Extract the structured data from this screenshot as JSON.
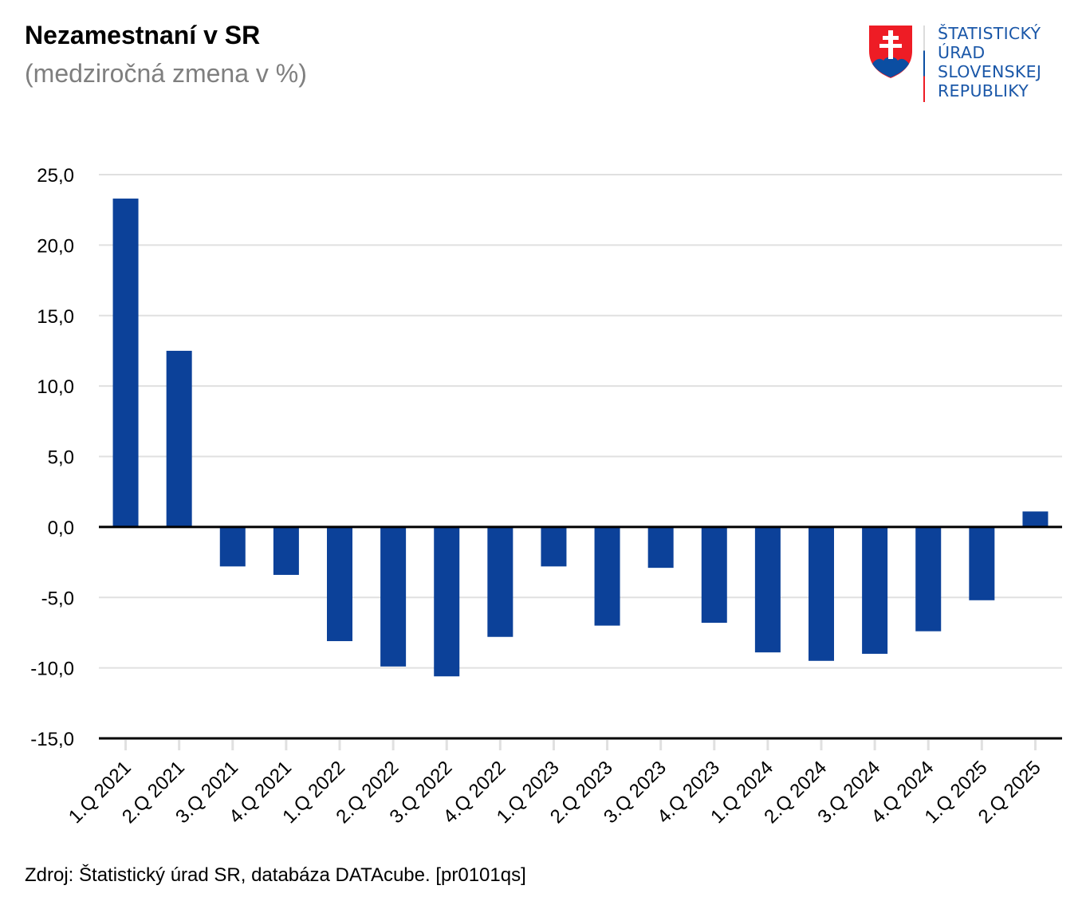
{
  "header": {
    "title": "Nezamestnaní v SR",
    "subtitle": "(medziročná zmena v %)"
  },
  "logo": {
    "lines": [
      "ŠTATISTICKÝ",
      "ÚRAD",
      "SLOVENSKEJ",
      "REPUBLIKY"
    ],
    "colors": {
      "red": "#ee1c25",
      "blue": "#0b4ea2",
      "text": "#1a57a8",
      "white": "#ffffff"
    }
  },
  "footer": {
    "source": "Zdroj: Štatistický úrad SR, databáza DATAcube. [pr0101qs]"
  },
  "chart_data": {
    "type": "bar",
    "title": "Nezamestnaní v SR",
    "subtitle": "(medziročná zmena v %)",
    "xlabel": "",
    "ylabel": "",
    "categories": [
      "1.Q 2021",
      "2.Q 2021",
      "3.Q 2021",
      "4.Q 2021",
      "1.Q 2022",
      "2.Q 2022",
      "3.Q 2022",
      "4.Q 2022",
      "1.Q 2023",
      "2.Q 2023",
      "3.Q 2023",
      "4.Q 2023",
      "1.Q 2024",
      "2.Q 2024",
      "3.Q 2024",
      "4.Q 2024",
      "1.Q 2025",
      "2.Q 2025"
    ],
    "values": [
      23.3,
      12.5,
      -2.8,
      -3.4,
      -8.1,
      -9.9,
      -10.6,
      -7.8,
      -2.8,
      -7.0,
      -2.9,
      -6.8,
      -8.9,
      -9.5,
      -9.0,
      -7.4,
      -5.2,
      1.1
    ],
    "ylim": [
      -15,
      25
    ],
    "yticks": [
      25,
      20,
      15,
      10,
      5,
      0,
      -5,
      -10,
      -15
    ],
    "ytick_labels": [
      "25,0",
      "20,0",
      "15,0",
      "10,0",
      "5,0",
      "0,0",
      "-5,0",
      "-10,0",
      "-15,0"
    ],
    "grid": true,
    "legend": "none",
    "bar_color": "#0c4199",
    "grid_color": "#e0e0e0",
    "axis_color": "#000000"
  }
}
